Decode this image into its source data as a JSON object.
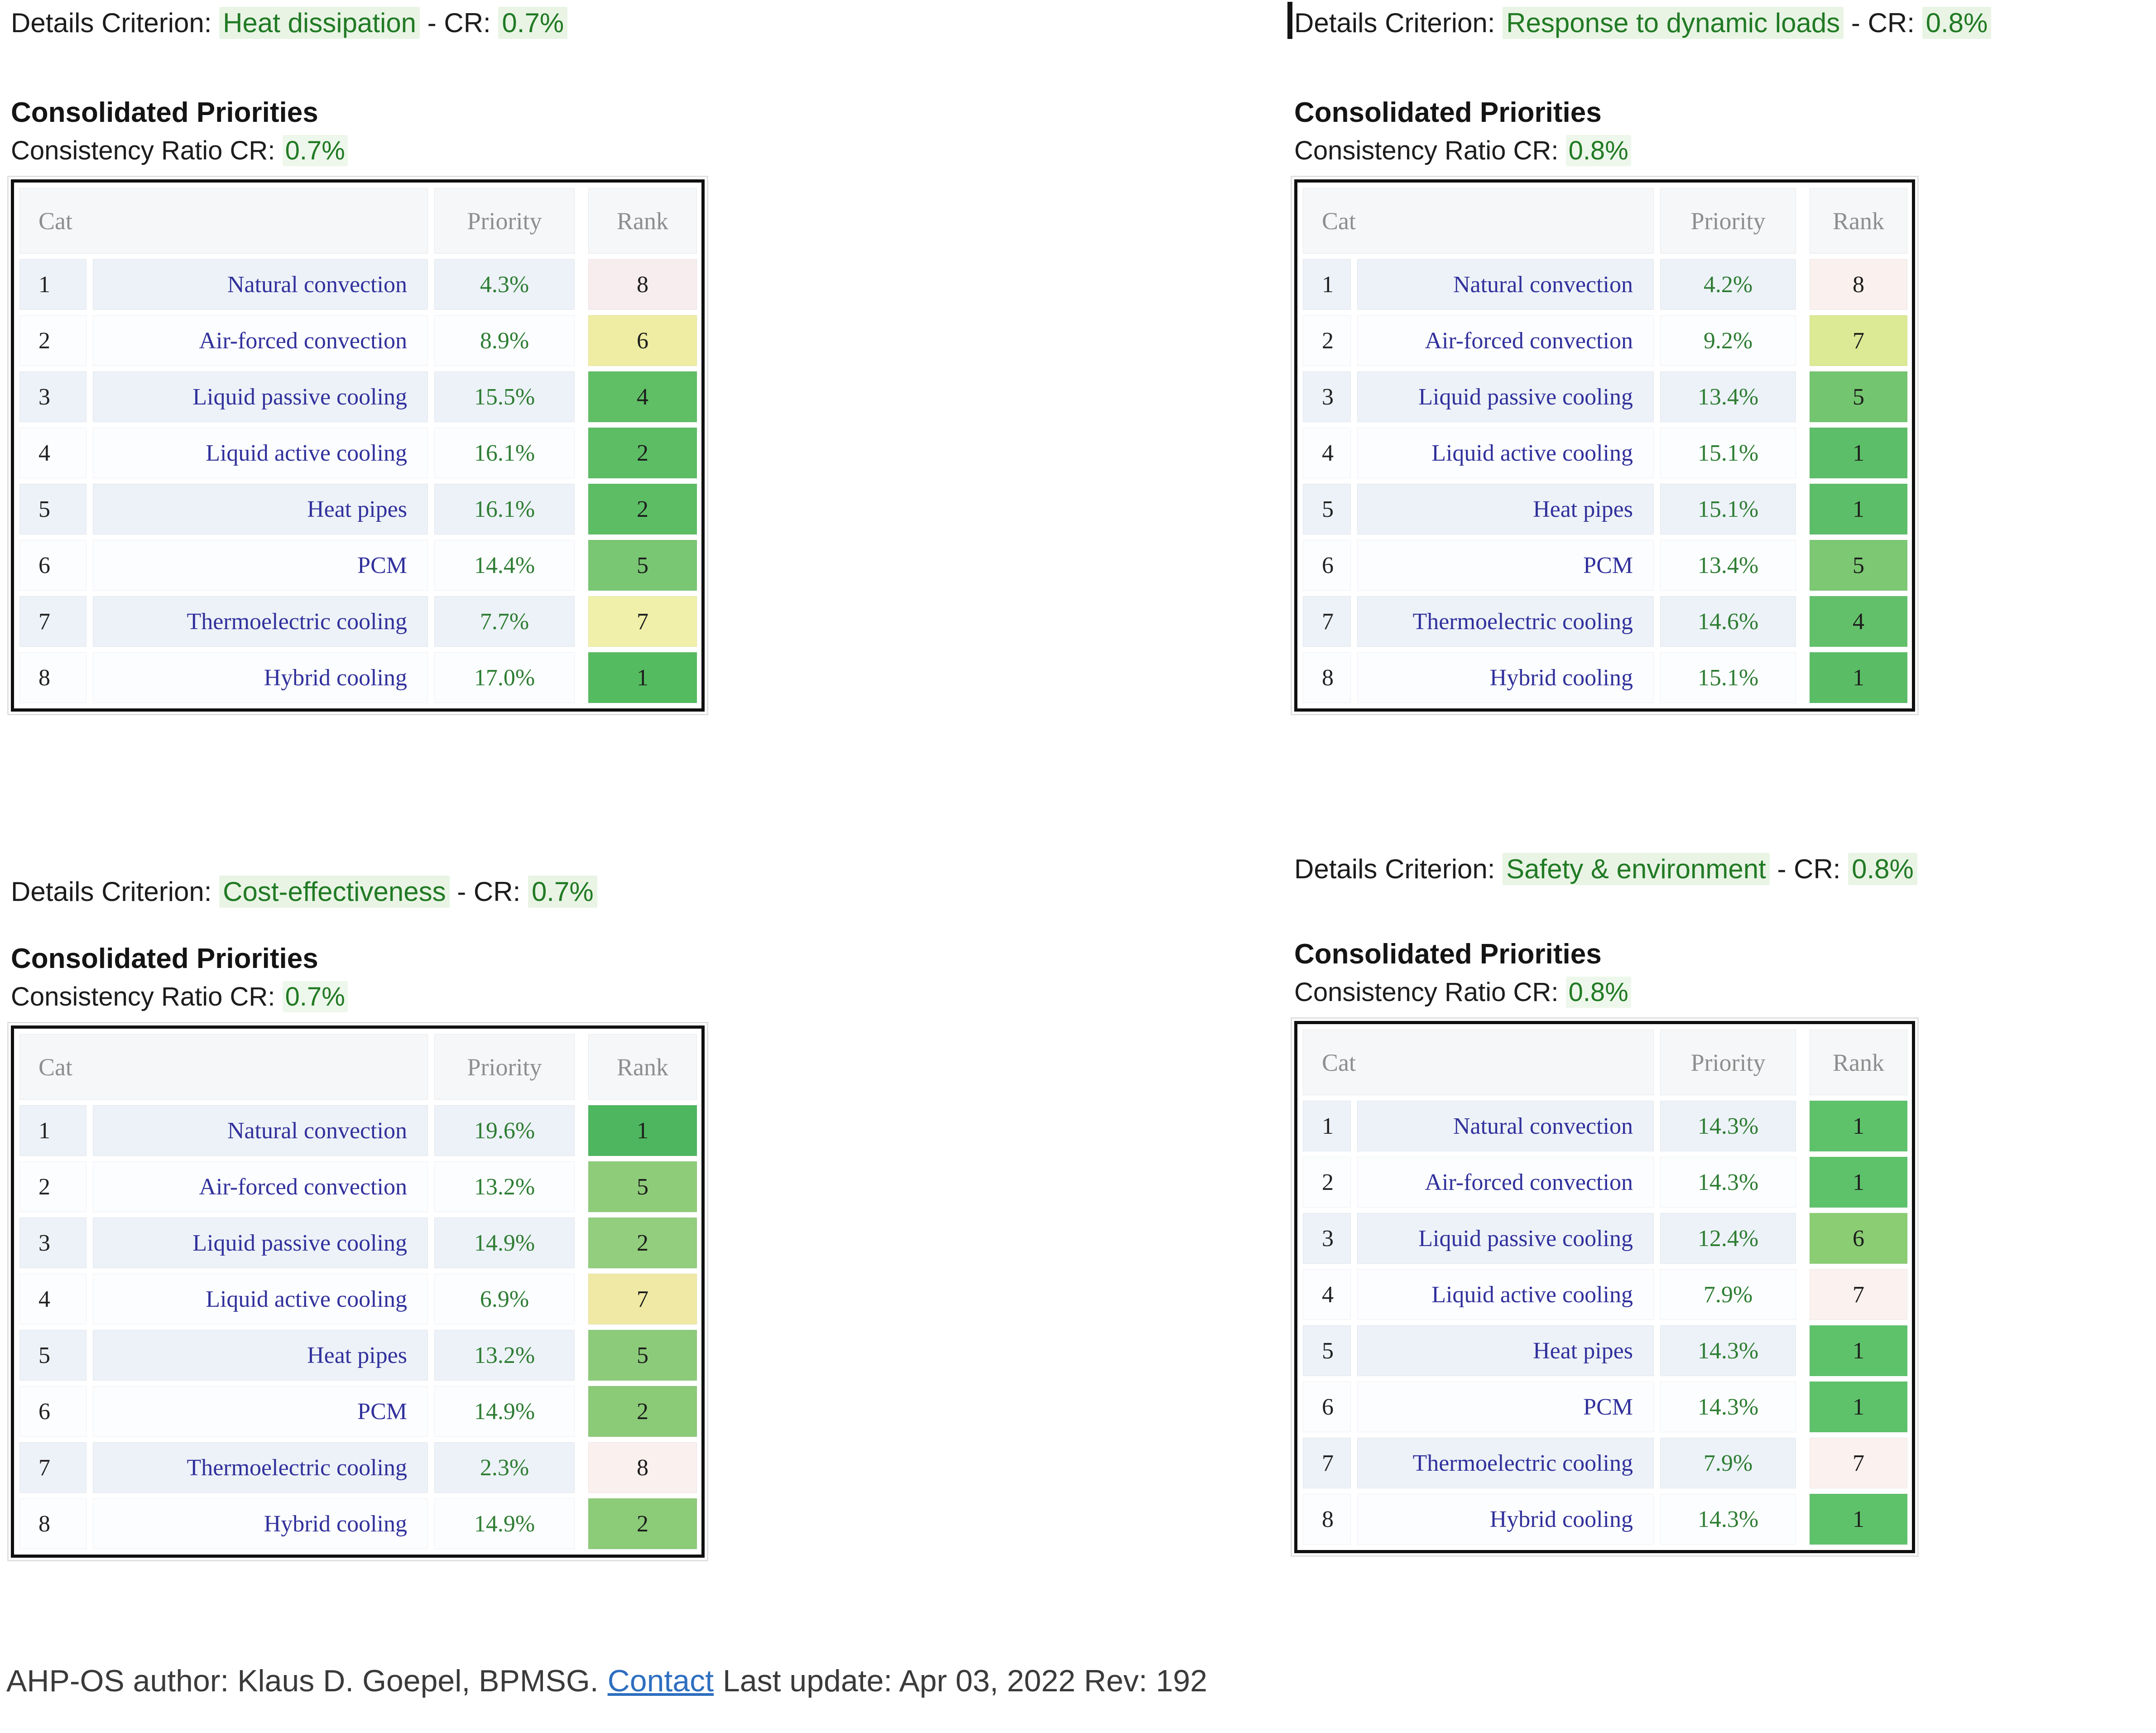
{
  "labels": {
    "details_prefix": "Details Criterion:",
    "dash": "-",
    "cr_label": "CR:",
    "consolidated_title": "Consolidated Priorities",
    "consistency_prefix": "Consistency Ratio CR:",
    "columns": {
      "cat": "Cat",
      "priority": "Priority",
      "rank": "Rank"
    }
  },
  "colors": {
    "criterion_green": "#217a24",
    "criterion_highlight_bg": "#e9f4e5",
    "name_navy": "#31319c",
    "priority_green": "#2e7d33",
    "link_blue": "#2d6fc0",
    "table_border_black": "#101010",
    "row_tint_blue": "#edf2f8",
    "header_gray_text": "#8e8e8e"
  },
  "sections": [
    {
      "criterion": "Heat dissipation",
      "cr": "0.7%",
      "rows": [
        {
          "cat": "1",
          "name": "Natural convection",
          "priority": "4.3%",
          "rank": "8",
          "color": "#f7edee"
        },
        {
          "cat": "2",
          "name": "Air-forced convection",
          "priority": "8.9%",
          "rank": "6",
          "color": "#eeeda3"
        },
        {
          "cat": "3",
          "name": "Liquid passive cooling",
          "priority": "15.5%",
          "rank": "4",
          "color": "#60be65"
        },
        {
          "cat": "4",
          "name": "Liquid active cooling",
          "priority": "16.1%",
          "rank": "2",
          "color": "#5cbd65"
        },
        {
          "cat": "5",
          "name": "Heat pipes",
          "priority": "16.1%",
          "rank": "2",
          "color": "#5cbd65"
        },
        {
          "cat": "6",
          "name": "PCM",
          "priority": "14.4%",
          "rank": "5",
          "color": "#79c673"
        },
        {
          "cat": "7",
          "name": "Thermoelectric cooling",
          "priority": "7.7%",
          "rank": "7",
          "color": "#f0f0ab"
        },
        {
          "cat": "8",
          "name": "Hybrid cooling",
          "priority": "17.0%",
          "rank": "1",
          "color": "#55bb60"
        }
      ]
    },
    {
      "criterion": "Response to dynamic loads",
      "cr": "0.8%",
      "rows": [
        {
          "cat": "1",
          "name": "Natural convection",
          "priority": "4.2%",
          "rank": "8",
          "color": "#faf1ee"
        },
        {
          "cat": "2",
          "name": "Air-forced convection",
          "priority": "9.2%",
          "rank": "7",
          "color": "#dcea95"
        },
        {
          "cat": "3",
          "name": "Liquid passive cooling",
          "priority": "13.4%",
          "rank": "5",
          "color": "#74c56f"
        },
        {
          "cat": "4",
          "name": "Liquid active cooling",
          "priority": "15.1%",
          "rank": "1",
          "color": "#5cbe68"
        },
        {
          "cat": "5",
          "name": "Heat pipes",
          "priority": "15.1%",
          "rank": "1",
          "color": "#5cbe68"
        },
        {
          "cat": "6",
          "name": "PCM",
          "priority": "13.4%",
          "rank": "5",
          "color": "#7cc873"
        },
        {
          "cat": "7",
          "name": "Thermoelectric cooling",
          "priority": "14.6%",
          "rank": "4",
          "color": "#63c06a"
        },
        {
          "cat": "8",
          "name": "Hybrid cooling",
          "priority": "15.1%",
          "rank": "1",
          "color": "#5abd66"
        }
      ]
    },
    {
      "criterion": "Cost-effectiveness",
      "cr": "0.7%",
      "rows": [
        {
          "cat": "1",
          "name": "Natural convection",
          "priority": "19.6%",
          "rank": "1",
          "color": "#4db65e"
        },
        {
          "cat": "2",
          "name": "Air-forced convection",
          "priority": "13.2%",
          "rank": "5",
          "color": "#8ecc7a"
        },
        {
          "cat": "3",
          "name": "Liquid passive cooling",
          "priority": "14.9%",
          "rank": "2",
          "color": "#92ce7d"
        },
        {
          "cat": "4",
          "name": "Liquid active cooling",
          "priority": "6.9%",
          "rank": "7",
          "color": "#efe9a5"
        },
        {
          "cat": "5",
          "name": "Heat pipes",
          "priority": "13.2%",
          "rank": "5",
          "color": "#8ccb79"
        },
        {
          "cat": "6",
          "name": "PCM",
          "priority": "14.9%",
          "rank": "2",
          "color": "#8bca77"
        },
        {
          "cat": "7",
          "name": "Thermoelectric cooling",
          "priority": "2.3%",
          "rank": "8",
          "color": "#faf0ee"
        },
        {
          "cat": "8",
          "name": "Hybrid cooling",
          "priority": "14.9%",
          "rank": "2",
          "color": "#8ccb78"
        }
      ]
    },
    {
      "criterion": "Safety & environment",
      "cr": "0.8%",
      "rows": [
        {
          "cat": "1",
          "name": "Natural convection",
          "priority": "14.3%",
          "rank": "1",
          "color": "#5ec26b"
        },
        {
          "cat": "2",
          "name": "Air-forced convection",
          "priority": "14.3%",
          "rank": "1",
          "color": "#5ec26b"
        },
        {
          "cat": "3",
          "name": "Liquid passive cooling",
          "priority": "12.4%",
          "rank": "6",
          "color": "#8bcd73"
        },
        {
          "cat": "4",
          "name": "Liquid active cooling",
          "priority": "7.9%",
          "rank": "7",
          "color": "#fbf2ef"
        },
        {
          "cat": "5",
          "name": "Heat pipes",
          "priority": "14.3%",
          "rank": "1",
          "color": "#5ec26b"
        },
        {
          "cat": "6",
          "name": "PCM",
          "priority": "14.3%",
          "rank": "1",
          "color": "#5ec26b"
        },
        {
          "cat": "7",
          "name": "Thermoelectric cooling",
          "priority": "7.9%",
          "rank": "7",
          "color": "#fbf2ef"
        },
        {
          "cat": "8",
          "name": "Hybrid cooling",
          "priority": "14.3%",
          "rank": "1",
          "color": "#5ec26b"
        }
      ]
    }
  ],
  "footer": {
    "prefix": "AHP-OS author: Klaus D. Goepel, BPMSG.",
    "contact_label": "Contact",
    "suffix": "Last update: Apr 03, 2022 Rev: 192"
  }
}
